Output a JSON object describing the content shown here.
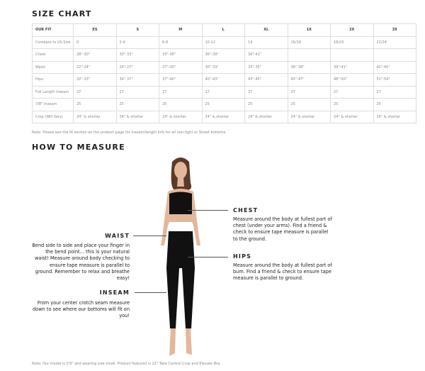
{
  "title": "SIZE CHART",
  "table": {
    "headers": [
      "OUR FIT",
      "XS",
      "S",
      "M",
      "L",
      "XL",
      "1X",
      "2X",
      "3X"
    ],
    "rows": [
      [
        "Compare to US Size",
        "0",
        "2-4",
        "6-8",
        "10-12",
        "14",
        "16/18",
        "18/20",
        "22/24"
      ],
      [
        "Chest",
        "28\"-30\"",
        "30\"-33\"",
        "33\"-36\"",
        "36\"-39\"",
        "39\"-41\"",
        "",
        "",
        ""
      ],
      [
        "Waist",
        "22\"-24\"",
        "24\"-27\"",
        "27\"-30\"",
        "30\"-33\"",
        "33\"-35\"",
        "36\"-38\"",
        "39\"-41\"",
        "42\"-45\""
      ],
      [
        "Hips",
        "32\"-33\"",
        "34\"-37\"",
        "37\"-40\"",
        "40\"-43\"",
        "43\"-45\"",
        "45\"-47\"",
        "48\"-50\"",
        "51\"-54\""
      ],
      [
        "Full Length Inseam",
        "27",
        "27",
        "27",
        "27",
        "27",
        "27",
        "27",
        "27"
      ],
      [
        "7/8\" Inseam",
        "25",
        "25",
        "25",
        "25",
        "25",
        "25",
        "25",
        "25"
      ],
      [
        "Crop (Will Vary)",
        "24\" & shorter",
        "24\" & shorter",
        "24\" & shorter",
        "24\" & shorter",
        "24\" & shorter",
        "24\" & shorter",
        "24\" & shorter",
        "24\" & shorter"
      ]
    ]
  },
  "note1": "Note: Please see the fit section on the product page for inseam/length info for all non-tight or Street bottoms.",
  "measure_title": "HOW TO MEASURE",
  "chest": {
    "label": "CHEST",
    "text": "Measure around the body at fullest part of chest (under your arms). Find a friend & check to ensure tape measure is parallel to the ground."
  },
  "waist": {
    "label": "WAIST",
    "text": "Bend side to side and place your finger in the bend point... this is your natural waist! Measure around body checking to ensure tape measure is parallel to ground. Remember to relax and breathe easy!"
  },
  "hips": {
    "label": "HIPS",
    "text": "Measure around the body at fullest part of bum. Find a friend & check to ensure tape measure is parallel to ground."
  },
  "inseam": {
    "label": "INSEAM",
    "text": "From your center crotch seam measure down to see where our bottoms will fit on you!"
  },
  "note2": "Note: Our model is 5'9\" and wearing size small. Product featured is 22\" Take Control Crop and Elevate Bra."
}
